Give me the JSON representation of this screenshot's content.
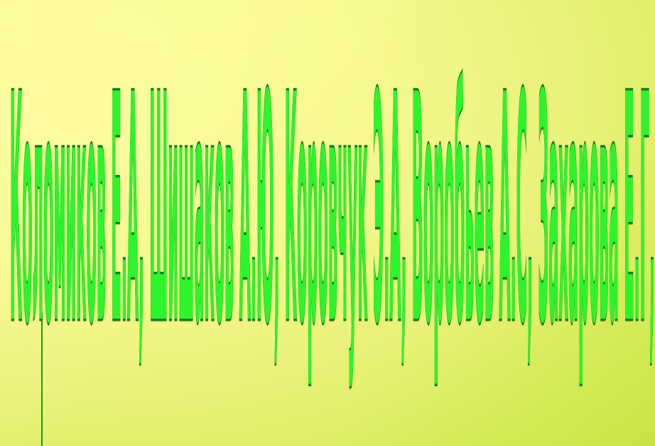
{
  "slide": {
    "wordart_text": "Коломиков Е.А, Шишаков А.Ю, Коровчук Э.А, Воробьев А.С, Захарова Е.Г,",
    "colors": {
      "fill": "#2cf52c",
      "outline": "#157a15",
      "background": "#f6f88e"
    }
  }
}
